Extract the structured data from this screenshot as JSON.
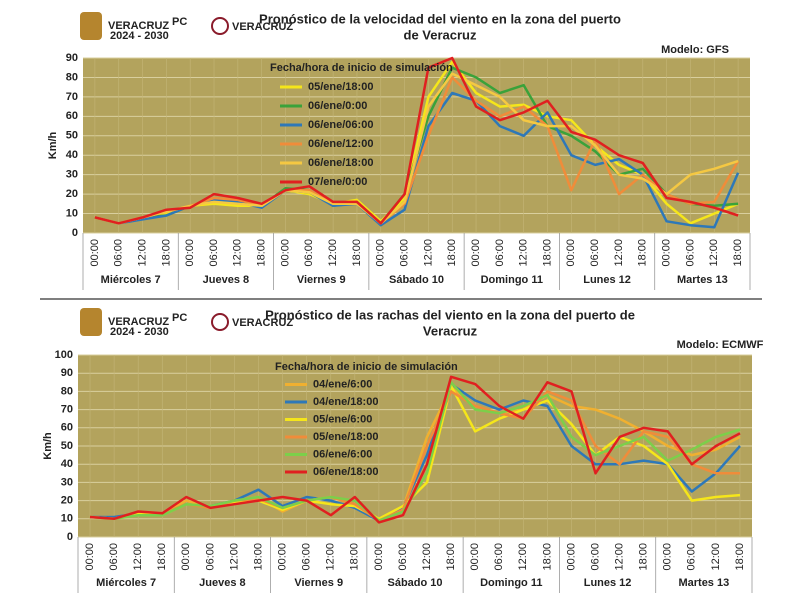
{
  "chart_data": [
    {
      "type": "line",
      "logos": [
        "VERACRUZ",
        "2024 - 2030",
        "PC",
        "VERACRUZ"
      ],
      "title": [
        "Pronóstico de la velocidad del viento en la zona del puerto",
        "de Veracruz"
      ],
      "model": "Modelo: GFS",
      "ylabel": "Km/h",
      "legend_title": "Fecha/hora de inicio de simulación",
      "categories": [
        "00:00",
        "06:00",
        "12:00",
        "18:00",
        "00:00",
        "06:00",
        "12:00",
        "18:00",
        "00:00",
        "06:00",
        "12:00",
        "18:00",
        "00:00",
        "06:00",
        "12:00",
        "18:00",
        "00:00",
        "06:00",
        "12:00",
        "18:00",
        "00:00",
        "06:00",
        "12:00",
        "18:00",
        "00:00",
        "06:00",
        "12:00",
        "18:00"
      ],
      "groups": [
        "Miércoles 7",
        "Jueves 8",
        "Viernes 9",
        "Sábado 10",
        "Domingo 11",
        "Lunes 12",
        "Martes 13"
      ],
      "ylim": [
        0,
        90
      ],
      "yticks": [
        0,
        10,
        20,
        30,
        40,
        50,
        60,
        70,
        80,
        90
      ],
      "grid": true,
      "plot_bg": "#b3a35d",
      "series": [
        {
          "name": "05/ene/18:00",
          "color": "#f5e61a",
          "values": [
            8,
            5,
            8,
            10,
            14,
            15,
            14,
            14,
            22,
            20,
            15,
            17,
            6,
            18,
            70,
            88,
            72,
            65,
            66,
            60,
            58,
            45,
            35,
            30,
            15,
            5,
            10,
            15
          ]
        },
        {
          "name": "06/ene/0:00",
          "color": "#3aa23a",
          "values": [
            8,
            5,
            8,
            9,
            14,
            17,
            16,
            14,
            23,
            22,
            14,
            16,
            5,
            20,
            60,
            85,
            80,
            72,
            76,
            55,
            50,
            42,
            30,
            33,
            20,
            15,
            14,
            15
          ]
        },
        {
          "name": "06/ene/06:00",
          "color": "#2e78b8",
          "values": [
            8,
            5,
            7,
            9,
            14,
            17,
            16,
            13,
            22,
            21,
            14,
            15,
            4,
            12,
            55,
            72,
            68,
            55,
            50,
            62,
            40,
            35,
            38,
            30,
            6,
            4,
            3,
            31
          ]
        },
        {
          "name": "06/ene/12:00",
          "color": "#f08c3a",
          "values": [
            8,
            5,
            8,
            11,
            14,
            18,
            17,
            14,
            22,
            22,
            15,
            16,
            5,
            15,
            50,
            80,
            68,
            60,
            65,
            55,
            22,
            48,
            20,
            30,
            20,
            15,
            16,
            37
          ]
        },
        {
          "name": "06/ene/18:00",
          "color": "#f5c842",
          "values": [
            8,
            5,
            8,
            11,
            14,
            16,
            15,
            14,
            22,
            21,
            15,
            15,
            5,
            16,
            65,
            82,
            76,
            70,
            58,
            55,
            55,
            45,
            30,
            28,
            20,
            30,
            33,
            37
          ]
        },
        {
          "name": "07/ene/0:00",
          "color": "#e02020",
          "values": [
            8,
            5,
            8,
            12,
            13,
            20,
            18,
            15,
            22,
            24,
            16,
            16,
            5,
            20,
            85,
            90,
            65,
            58,
            62,
            68,
            52,
            48,
            40,
            36,
            18,
            16,
            13,
            9
          ]
        }
      ]
    },
    {
      "type": "line",
      "logos": [
        "VERACRUZ",
        "2024 - 2030",
        "PC",
        "VERACRUZ"
      ],
      "title": [
        "Pronóstico de las rachas del viento en la zona del puerto de",
        "Veracruz"
      ],
      "model": "Modelo: ECMWF",
      "ylabel": "Km/h",
      "legend_title": "Fecha/hora de inicio de simulación",
      "categories": [
        "00:00",
        "06:00",
        "12:00",
        "18:00",
        "00:00",
        "06:00",
        "12:00",
        "18:00",
        "00:00",
        "06:00",
        "12:00",
        "18:00",
        "00:00",
        "06:00",
        "12:00",
        "18:00",
        "00:00",
        "06:00",
        "12:00",
        "18:00",
        "00:00",
        "06:00",
        "12:00",
        "18:00",
        "00:00",
        "06:00",
        "12:00",
        "18:00"
      ],
      "groups": [
        "Miércoles 7",
        "Jueves 8",
        "Viernes 9",
        "Sábado 10",
        "Domingo 11",
        "Lunes 12",
        "Martes 13"
      ],
      "ylim": [
        0,
        100
      ],
      "yticks": [
        0,
        10,
        20,
        30,
        40,
        50,
        60,
        70,
        80,
        90,
        100
      ],
      "grid": true,
      "plot_bg": "#b3a35d",
      "series": [
        {
          "name": "04/ene/6:00",
          "color": "#f0b030",
          "values": [
            11,
            11,
            13,
            13,
            20,
            16,
            20,
            22,
            14,
            20,
            22,
            18,
            10,
            16,
            55,
            82,
            72,
            68,
            70,
            78,
            72,
            70,
            65,
            58,
            50,
            45,
            48,
            55
          ]
        },
        {
          "name": "04/ene/18:00",
          "color": "#2e78b8",
          "values": [
            11,
            11,
            13,
            12,
            18,
            17,
            20,
            26,
            17,
            22,
            20,
            16,
            9,
            16,
            45,
            84,
            75,
            70,
            75,
            72,
            50,
            40,
            40,
            42,
            40,
            25,
            35,
            50
          ]
        },
        {
          "name": "05/ene/6:00",
          "color": "#f5e61a",
          "values": [
            11,
            10,
            13,
            12,
            18,
            17,
            19,
            20,
            15,
            20,
            18,
            17,
            10,
            17,
            30,
            83,
            58,
            65,
            70,
            75,
            62,
            45,
            55,
            50,
            40,
            20,
            22,
            23
          ]
        },
        {
          "name": "05/ene/18:00",
          "color": "#f08c3a",
          "values": [
            11,
            10,
            14,
            13,
            18,
            16,
            20,
            21,
            16,
            20,
            22,
            18,
            9,
            15,
            50,
            80,
            72,
            68,
            65,
            80,
            75,
            50,
            40,
            58,
            55,
            40,
            35,
            35
          ]
        },
        {
          "name": "06/ene/6:00",
          "color": "#7ccf4a",
          "values": [
            11,
            10,
            12,
            12,
            18,
            17,
            20,
            22,
            16,
            20,
            22,
            20,
            9,
            14,
            35,
            85,
            70,
            68,
            72,
            78,
            55,
            45,
            50,
            55,
            42,
            48,
            55,
            59
          ]
        },
        {
          "name": "06/ene/18:00",
          "color": "#e02020",
          "values": [
            11,
            10,
            14,
            13,
            22,
            16,
            18,
            20,
            22,
            20,
            12,
            22,
            8,
            12,
            40,
            88,
            84,
            72,
            65,
            85,
            80,
            35,
            55,
            60,
            58,
            40,
            50,
            57
          ]
        }
      ]
    }
  ]
}
